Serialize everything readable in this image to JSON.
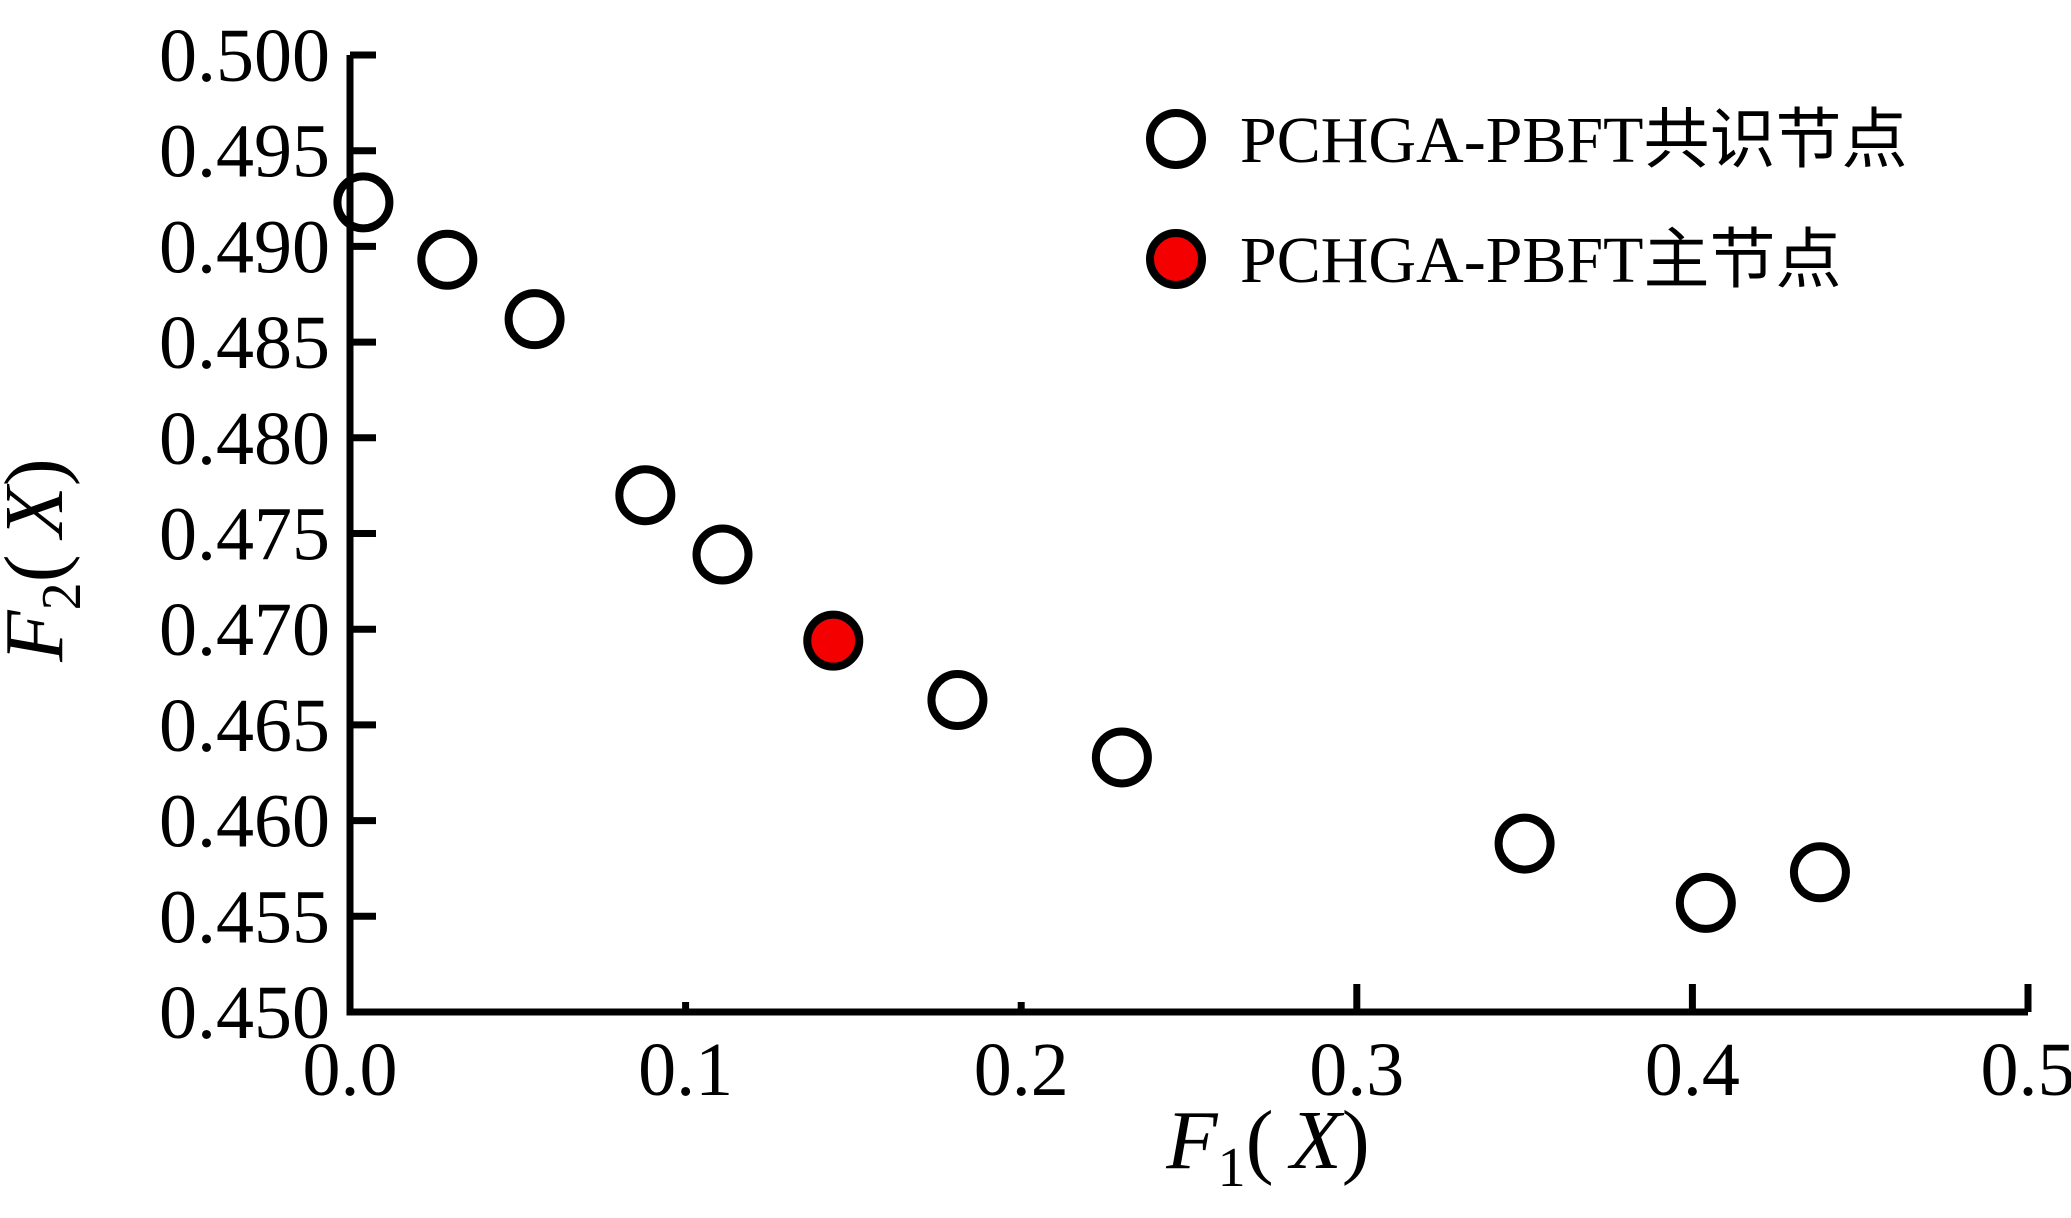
{
  "figure": {
    "background": "#ffffff",
    "ink_color": "#000000",
    "accent_red": "#f50000"
  },
  "chart_data": {
    "type": "scatter",
    "title": "",
    "xlabel": "F1(X)",
    "ylabel": "F2(X)",
    "xlabel_parts": {
      "base": "F",
      "sub": "1",
      "open": "(",
      "var": "X",
      "close": ")"
    },
    "ylabel_parts": {
      "base": "F",
      "sub": "2",
      "open": "(",
      "var": "X",
      "close": ")"
    },
    "xlim": [
      0.0,
      0.5
    ],
    "ylim": [
      0.45,
      0.5
    ],
    "grid": false,
    "x_ticks": [
      0.0,
      0.1,
      0.2,
      0.3,
      0.4,
      0.5
    ],
    "x_tick_labels": [
      "0.0",
      "0.1",
      "0.2",
      "0.3",
      "0.4",
      "0.5"
    ],
    "y_ticks": [
      0.45,
      0.455,
      0.46,
      0.465,
      0.47,
      0.475,
      0.48,
      0.485,
      0.49,
      0.495,
      0.5
    ],
    "y_tick_labels": [
      "0.450",
      "0.455",
      "0.460",
      "0.465",
      "0.470",
      "0.475",
      "0.480",
      "0.485",
      "0.490",
      "0.495",
      "0.500"
    ],
    "legend_position": "top-right-inside",
    "series": [
      {
        "name": "PCHGA-PBFT共识节点",
        "marker": "open-circle",
        "fill": "none",
        "edge": "#000000",
        "points": [
          [
            0.004,
            0.4923
          ],
          [
            0.029,
            0.4893
          ],
          [
            0.055,
            0.4862
          ],
          [
            0.088,
            0.477
          ],
          [
            0.111,
            0.4739
          ],
          [
            0.181,
            0.4663
          ],
          [
            0.23,
            0.4633
          ],
          [
            0.35,
            0.4588
          ],
          [
            0.404,
            0.4557
          ],
          [
            0.438,
            0.4573
          ]
        ]
      },
      {
        "name": "PCHGA-PBFT主节点",
        "marker": "filled-circle",
        "fill": "#f50000",
        "edge": "#000000",
        "points": [
          [
            0.144,
            0.4694
          ]
        ]
      }
    ]
  },
  "legend": {
    "items": [
      {
        "label": "PCHGA-PBFT共识节点",
        "marker": "open-circle",
        "fill": "none"
      },
      {
        "label": "PCHGA-PBFT主节点",
        "marker": "filled-circle",
        "fill": "#f50000"
      }
    ]
  }
}
